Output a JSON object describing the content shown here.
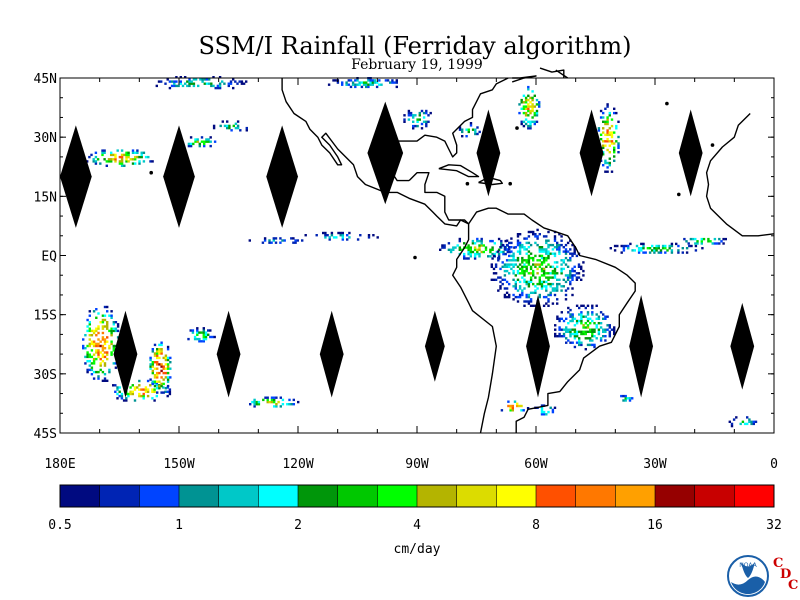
{
  "title": "SSM/I Rainfall (Ferriday algorithm)",
  "subtitle": "February 19, 1999",
  "map": {
    "lon_range": [
      -180,
      0
    ],
    "lat_range": [
      -45,
      45
    ],
    "lat_ticks": [
      {
        "value": 45,
        "label": "45N"
      },
      {
        "value": 30,
        "label": "30N"
      },
      {
        "value": 15,
        "label": "15N"
      },
      {
        "value": 0,
        "label": "EQ"
      },
      {
        "value": -15,
        "label": "15S"
      },
      {
        "value": -30,
        "label": "30S"
      },
      {
        "value": -45,
        "label": "45S"
      }
    ],
    "lon_ticks": [
      {
        "value": -180,
        "label": "180E"
      },
      {
        "value": -150,
        "label": "150W"
      },
      {
        "value": -120,
        "label": "120W"
      },
      {
        "value": -90,
        "label": "90W"
      },
      {
        "value": -60,
        "label": "60W"
      },
      {
        "value": -30,
        "label": "30W"
      },
      {
        "value": 0,
        "label": "0"
      }
    ],
    "no_data_color": "#000000",
    "coast_color": "#000000",
    "gaps": [
      {
        "lon": -176,
        "lat": 20,
        "lon_w": 4,
        "lat_h": 13
      },
      {
        "lon": -150,
        "lat": 20,
        "lon_w": 4,
        "lat_h": 13
      },
      {
        "lon": -124,
        "lat": 20,
        "lon_w": 4,
        "lat_h": 13
      },
      {
        "lon": -98,
        "lat": 26,
        "lon_w": 4.5,
        "lat_h": 13
      },
      {
        "lon": -72,
        "lat": 26,
        "lon_w": 3,
        "lat_h": 11
      },
      {
        "lon": -46,
        "lat": 26,
        "lon_w": 3,
        "lat_h": 11
      },
      {
        "lon": -21,
        "lat": 26,
        "lon_w": 3,
        "lat_h": 11
      },
      {
        "lon": -163.5,
        "lat": -25,
        "lon_w": 3,
        "lat_h": 11
      },
      {
        "lon": -137.5,
        "lat": -25,
        "lon_w": 3,
        "lat_h": 11
      },
      {
        "lon": -111.5,
        "lat": -25,
        "lon_w": 3,
        "lat_h": 11
      },
      {
        "lon": -85.5,
        "lat": -23,
        "lon_w": 2.5,
        "lat_h": 9
      },
      {
        "lon": -59.5,
        "lat": -23,
        "lon_w": 3,
        "lat_h": 13
      },
      {
        "lon": -33.5,
        "lat": -23,
        "lon_w": 3,
        "lat_h": 13
      },
      {
        "lon": -8,
        "lat": -23,
        "lon_w": 3,
        "lat_h": 11
      }
    ],
    "rain_regions": [
      {
        "lon": -165,
        "lat": 25,
        "rlon": 9,
        "rlat": 2.5,
        "max": 10
      },
      {
        "lon": -145,
        "lat": 29,
        "rlon": 5,
        "rlat": 1.5,
        "max": 5
      },
      {
        "lon": -137,
        "lat": 33,
        "rlon": 5,
        "rlat": 1.5,
        "max": 3
      },
      {
        "lon": -145,
        "lat": 44,
        "rlon": 12,
        "rlat": 1.8,
        "max": 3
      },
      {
        "lon": -103,
        "lat": 44,
        "rlon": 10,
        "rlat": 1.5,
        "max": 3
      },
      {
        "lon": -62,
        "lat": 38,
        "rlon": 3,
        "rlat": 6,
        "max": 10
      },
      {
        "lon": -77,
        "lat": 32,
        "rlon": 3,
        "rlat": 2,
        "max": 4
      },
      {
        "lon": -42,
        "lat": 30,
        "rlon": 3,
        "rlat": 9,
        "max": 12
      },
      {
        "lon": -90,
        "lat": 35,
        "rlon": 4,
        "rlat": 3,
        "max": 3
      },
      {
        "lon": -170,
        "lat": -22,
        "rlon": 5,
        "rlat": 10,
        "max": 18
      },
      {
        "lon": -160,
        "lat": -34,
        "rlon": 8,
        "rlat": 3,
        "max": 12
      },
      {
        "lon": -155,
        "lat": -28,
        "rlon": 3,
        "rlat": 7,
        "max": 22
      },
      {
        "lon": -127,
        "lat": -37,
        "rlon": 7,
        "rlat": 1.5,
        "max": 8
      },
      {
        "lon": -145,
        "lat": -20,
        "rlon": 4,
        "rlat": 2,
        "max": 5
      },
      {
        "lon": -75,
        "lat": 2,
        "rlon": 10,
        "rlat": 3,
        "max": 6
      },
      {
        "lon": -60,
        "lat": -3,
        "rlon": 12,
        "rlat": 10,
        "max": 5
      },
      {
        "lon": -48,
        "lat": -18,
        "rlon": 8,
        "rlat": 6,
        "max": 5
      },
      {
        "lon": -30,
        "lat": 2,
        "rlon": 12,
        "rlat": 1.5,
        "max": 4
      },
      {
        "lon": -18,
        "lat": 4,
        "rlon": 6,
        "rlat": 1.2,
        "max": 5
      },
      {
        "lon": -66,
        "lat": -38,
        "rlon": 4,
        "rlat": 1.5,
        "max": 20
      },
      {
        "lon": -110,
        "lat": 5,
        "rlon": 10,
        "rlat": 1.2,
        "max": 2
      },
      {
        "lon": -125,
        "lat": 4,
        "rlon": 8,
        "rlat": 1,
        "max": 1.5
      },
      {
        "lon": -8,
        "lat": -42,
        "rlon": 4,
        "rlat": 1.5,
        "max": 3
      },
      {
        "lon": -38,
        "lat": -36,
        "rlon": 3,
        "rlat": 1,
        "max": 3
      },
      {
        "lon": -58,
        "lat": -39,
        "rlon": 3,
        "rlat": 1.5,
        "max": 4
      }
    ]
  },
  "colorbar": {
    "colors": [
      "#000a80",
      "#0024b4",
      "#0044ff",
      "#009393",
      "#00c8c8",
      "#00ffff",
      "#00960a",
      "#00c800",
      "#00ff00",
      "#b4b400",
      "#dcdc00",
      "#ffff00",
      "#ff5000",
      "#ff7800",
      "#ffa000",
      "#960000",
      "#c80000",
      "#ff0000"
    ],
    "tick_labels": [
      "0.5",
      "1",
      "2",
      "4",
      "8",
      "16",
      "32"
    ],
    "thresholds": [
      0.5,
      0.6,
      0.8,
      1,
      1.2,
      1.6,
      2,
      2.5,
      3,
      4,
      5,
      6,
      8,
      10,
      12,
      16,
      20,
      25,
      32
    ],
    "label": "cm/day"
  },
  "logo": {
    "name": "NOAA",
    "letters": [
      "C",
      "D",
      "C"
    ],
    "accent": "#cc0000",
    "blue": "#1a5fa8"
  }
}
